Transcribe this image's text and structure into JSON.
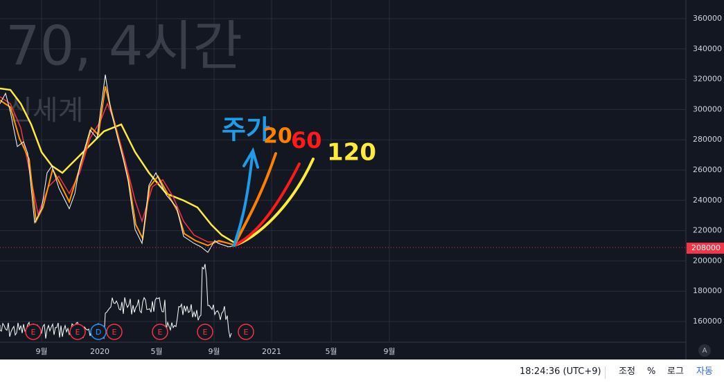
{
  "watermark": {
    "title": "70, 4시간",
    "name": "신세계"
  },
  "y_axis": {
    "labels": [
      "360000",
      "340000",
      "320000",
      "300000",
      "280000",
      "260000",
      "240000",
      "220000",
      "200000",
      "180000",
      "160000"
    ],
    "price_tag": "208000"
  },
  "x_axis": {
    "labels": [
      "9월",
      "2020",
      "5월",
      "9월",
      "2021",
      "5월",
      "9월"
    ],
    "auto": "A"
  },
  "events": [
    "E",
    "E",
    "D",
    "E",
    "E",
    "E",
    "E"
  ],
  "annotations": {
    "price": "주가",
    "ma20": "20",
    "ma60": "60",
    "ma120": "120"
  },
  "toolbar": {
    "time": "18:24:36 (UTC+9)",
    "adjust": "조정",
    "percent": "%",
    "log": "로그",
    "auto": "자동"
  }
}
